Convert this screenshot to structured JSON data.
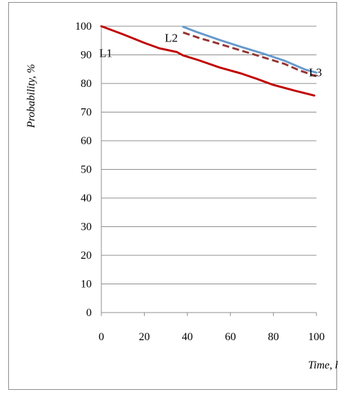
{
  "chart_data": {
    "type": "line",
    "xlabel": "Time, h",
    "ylabel": "Probability, %",
    "xlim": [
      0,
      100
    ],
    "ylim": [
      0,
      100
    ],
    "x_ticks": [
      0,
      20,
      40,
      60,
      80,
      100
    ],
    "y_ticks": [
      0,
      10,
      20,
      30,
      40,
      50,
      60,
      70,
      80,
      90,
      100
    ],
    "grid": "horizontal",
    "legend": "none",
    "series": [
      {
        "name": "L1",
        "color": "#c00000",
        "style": "solid",
        "points": [
          [
            0,
            100
          ],
          [
            10,
            97.2
          ],
          [
            20,
            94.2
          ],
          [
            27,
            92.3
          ],
          [
            35,
            91.0
          ],
          [
            38,
            89.8
          ],
          [
            45,
            88.2
          ],
          [
            55,
            85.6
          ],
          [
            65,
            83.5
          ],
          [
            72,
            81.7
          ],
          [
            80,
            79.5
          ],
          [
            90,
            77.5
          ],
          [
            99,
            75.8
          ]
        ]
      },
      {
        "name": "L2",
        "color": "#943634",
        "style": "dashed",
        "points": [
          [
            38,
            97.8
          ],
          [
            45,
            96.0
          ],
          [
            55,
            93.8
          ],
          [
            65,
            91.5
          ],
          [
            75,
            89.2
          ],
          [
            85,
            86.9
          ],
          [
            92,
            84.6
          ],
          [
            100,
            82.5
          ]
        ]
      },
      {
        "name": "L3",
        "color": "#6699cc",
        "style": "solid",
        "points": [
          [
            38,
            99.8
          ],
          [
            45,
            97.8
          ],
          [
            55,
            95.2
          ],
          [
            65,
            92.8
          ],
          [
            75,
            90.5
          ],
          [
            85,
            88.0
          ],
          [
            95,
            84.8
          ],
          [
            100,
            83.8
          ]
        ]
      }
    ],
    "labels": [
      {
        "text": "L1",
        "x": 0,
        "y": 90.7
      },
      {
        "text": "L2",
        "x": 29.5,
        "y": 96.0
      },
      {
        "text": "L3",
        "x": 96.5,
        "y": 84.0
      }
    ]
  }
}
